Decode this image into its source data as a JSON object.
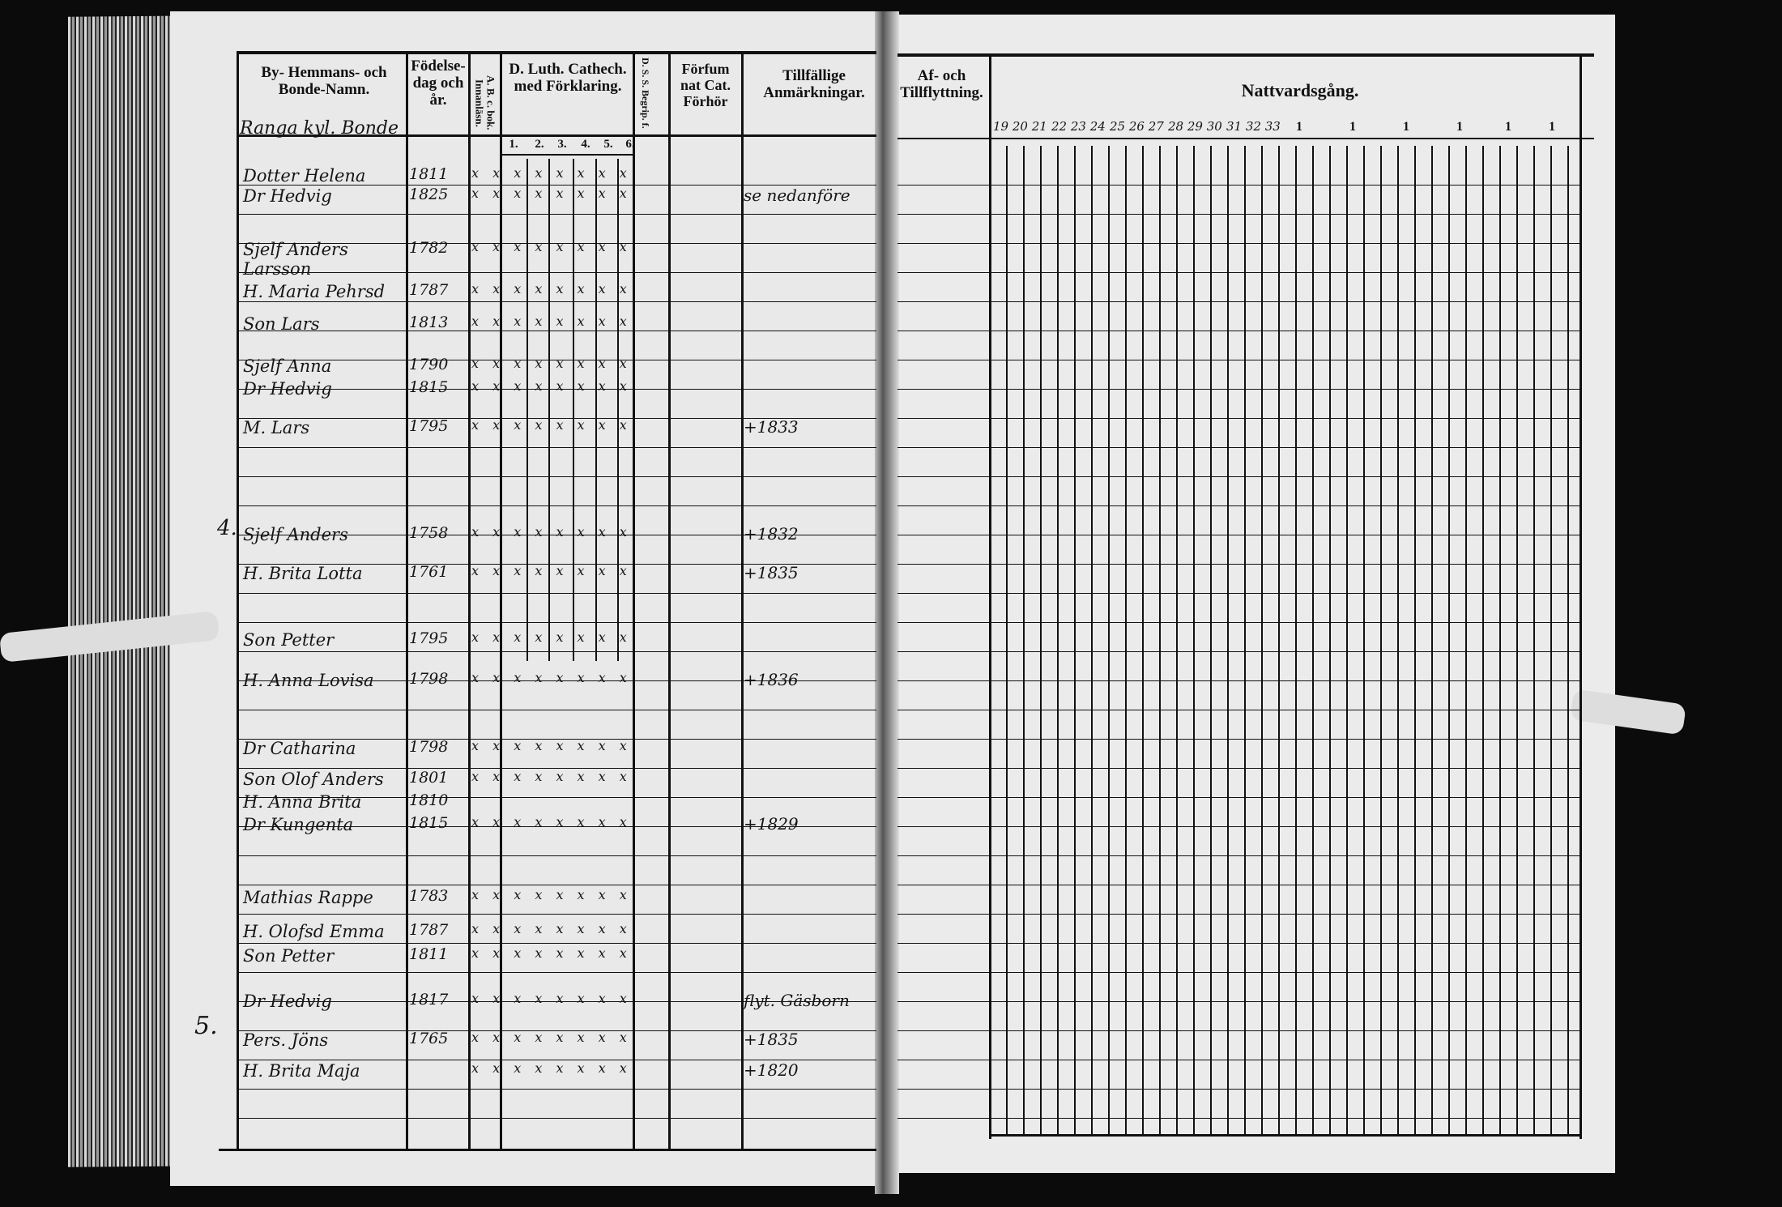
{
  "left_page": {
    "headers": {
      "name": "By- Hemmans- och Bonde-Namn.",
      "birth": "Födelse-dag och år.",
      "abc": "A. B. c. bok. Innanläsn.",
      "catechism": "D. Luth. Cathech. med Förklaring.",
      "catechism_sub": [
        "1.",
        "2.",
        "3.",
        "4.",
        "5.",
        "6."
      ],
      "dss": "D. S. S. Begrip. f.",
      "forhor": "Förfum nat Cat. Förhör",
      "remarks": "Tillfällige Anmärkningar."
    },
    "farm_title": "Ranga kyl. Bonde",
    "margin_numbers": [
      "4.",
      "5."
    ],
    "entries": [
      {
        "name": "Dotter Helena",
        "year": "1811",
        "marks": "x x  x x x x x x",
        "remark": ""
      },
      {
        "name": "Dr Hedvig",
        "year": "1825",
        "marks": "x x  x x x x x x",
        "remark": "se nedanföre"
      },
      {
        "name": "Sjelf Anders Larsson",
        "year": "1782",
        "marks": "x x  x x x x x x",
        "remark": ""
      },
      {
        "name": "H. Maria Pehrsd",
        "year": "1787",
        "marks": "x x  x x x x x x",
        "remark": ""
      },
      {
        "name": "Son Lars",
        "year": "1813",
        "marks": "x x  x x x x x x",
        "remark": ""
      },
      {
        "name": "Sjelf Anna",
        "year": "1790",
        "marks": "x x  x x x x x x",
        "remark": ""
      },
      {
        "name": "Dr Hedvig",
        "year": "1815",
        "marks": "x x  x x x x x x",
        "remark": ""
      },
      {
        "name": "M. Lars",
        "year": "1795",
        "marks": "x x  x x x x x x",
        "remark": "+1833"
      },
      {
        "name": "Sjelf Anders",
        "year": "1758",
        "marks": "x x  x x x x x x",
        "remark": "+1832"
      },
      {
        "name": "H. Brita Lotta",
        "year": "1761",
        "marks": "x x  x x x x x x",
        "remark": "+1835"
      },
      {
        "name": "Son Petter",
        "year": "1795",
        "marks": "x x  x x x x x x",
        "remark": ""
      },
      {
        "name": "H. Anna Lovisa",
        "year": "1798",
        "marks": "x x  x x x x x x",
        "remark": "+1836"
      },
      {
        "name": "Dr Catharina",
        "year": "1798",
        "marks": "x x  x x x x x x",
        "remark": ""
      },
      {
        "name": "Son Olof Anders",
        "year": "1801",
        "marks": "x x  x x x x x x",
        "remark": ""
      },
      {
        "name": "H. Anna Brita",
        "year": "1810",
        "marks": "",
        "remark": ""
      },
      {
        "name": "Dr Kungenta",
        "year": "1815",
        "marks": "x x  x x x x x x",
        "remark": "+1829"
      },
      {
        "name": "Mathias Rappe",
        "year": "1783",
        "marks": "x x  x x x x x x",
        "remark": ""
      },
      {
        "name": "H. Olofsd Emma",
        "year": "1787",
        "marks": "x x  x x x x x x",
        "remark": ""
      },
      {
        "name": "Son Petter",
        "year": "1811",
        "marks": "x x  x x x x x x",
        "remark": ""
      },
      {
        "name": "Dr Hedvig",
        "year": "1817",
        "marks": "x x  x x x x x x",
        "remark": "flyt. Gäsborn"
      },
      {
        "name": "Pers. Jöns",
        "year": "1765",
        "marks": "x x  x x x x x x",
        "remark": "+1835"
      },
      {
        "name": "H. Brita Maja",
        "year": "",
        "marks": "x x  x x x x x x",
        "remark": "+1820"
      }
    ]
  },
  "right_page": {
    "headers": {
      "moving": "Af- och Tillflyttning.",
      "communion": "Nattvardsgång.",
      "year_groups": [
        "19 20 21",
        "22 23 24",
        "25 26 27",
        "28 29 30",
        "31 32 33",
        "1",
        "1",
        "1",
        "1",
        "1",
        "1"
      ]
    }
  },
  "colors": {
    "background": "#0b0b0b",
    "paper": "#e9e9e9",
    "ink": "#111111"
  }
}
